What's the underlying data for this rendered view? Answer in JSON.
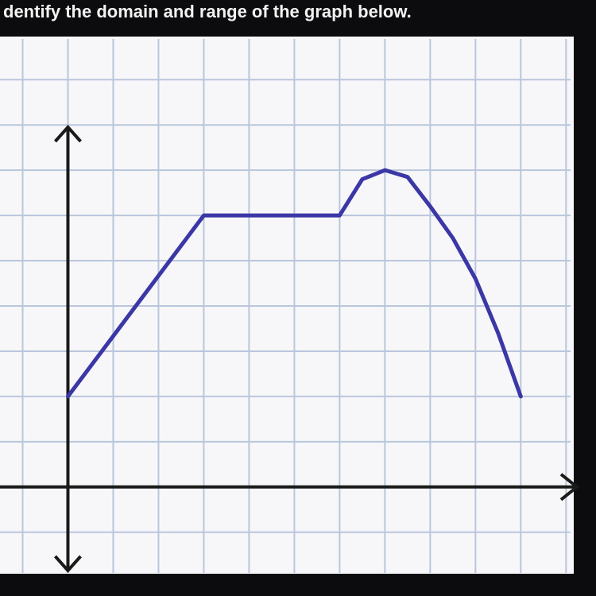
{
  "chart_data": {
    "type": "line",
    "title": "dentify the domain and range of the graph below.",
    "x": [
      0,
      3,
      6,
      6.5,
      7,
      7.5,
      8,
      8.5,
      9,
      9.5,
      10
    ],
    "series": [
      {
        "color": "#3b37a6",
        "values": [
          2,
          6,
          6,
          6.8,
          7,
          6.85,
          6.2,
          5.5,
          4.6,
          3.4,
          2
        ]
      }
    ],
    "xlim": [
      -1.5,
      11.1
    ],
    "ylim": [
      -1.9,
      9.9
    ],
    "xticks": [
      -1,
      0,
      1,
      2,
      3,
      4,
      5,
      6,
      7,
      8,
      9,
      10,
      11
    ],
    "yticks": [
      -1,
      0,
      1,
      2,
      3,
      4,
      5,
      6,
      7,
      8,
      9
    ],
    "grid": true
  }
}
